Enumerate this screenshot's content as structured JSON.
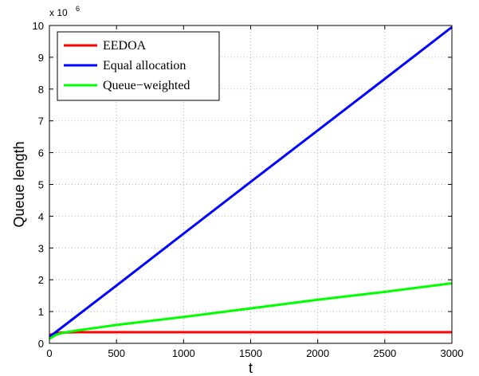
{
  "chart_data": {
    "type": "line",
    "xlabel": "t",
    "ylabel": "Queue length",
    "xlim": [
      0,
      3000
    ],
    "ylim": [
      0,
      10
    ],
    "x_ticks": [
      0,
      500,
      1000,
      1500,
      2000,
      2500,
      3000
    ],
    "x_tick_labels": [
      "0",
      "500",
      "1000",
      "1500",
      "2000",
      "2500",
      "3000"
    ],
    "y_ticks": [
      0,
      1,
      2,
      3,
      4,
      5,
      6,
      7,
      8,
      9,
      10
    ],
    "y_tick_labels": [
      "0",
      "1",
      "2",
      "3",
      "4",
      "5",
      "6",
      "7",
      "8",
      "9",
      "10"
    ],
    "y_multiplier": {
      "base": "x 10",
      "exponent": "6"
    },
    "grid": true,
    "legend_position": "top-left",
    "series": [
      {
        "name": "EEDOA",
        "color": "#ff0000",
        "x": [
          0,
          50,
          100,
          200,
          500,
          1000,
          1500,
          2000,
          2500,
          3000
        ],
        "y": [
          0.26,
          0.32,
          0.34,
          0.35,
          0.35,
          0.35,
          0.35,
          0.35,
          0.35,
          0.35
        ]
      },
      {
        "name": "Equal allocation",
        "color": "#0000ff",
        "x": [
          0,
          500,
          1000,
          1500,
          2000,
          2500,
          3000
        ],
        "y": [
          0.2,
          1.82,
          3.45,
          5.08,
          6.7,
          8.32,
          9.95
        ]
      },
      {
        "name": "Queue−weighted",
        "color": "#00ff00",
        "x": [
          0,
          50,
          100,
          200,
          500,
          1000,
          1500,
          2000,
          2500,
          3000
        ],
        "y": [
          0.14,
          0.27,
          0.33,
          0.4,
          0.58,
          0.83,
          1.1,
          1.37,
          1.62,
          1.89
        ]
      }
    ]
  }
}
